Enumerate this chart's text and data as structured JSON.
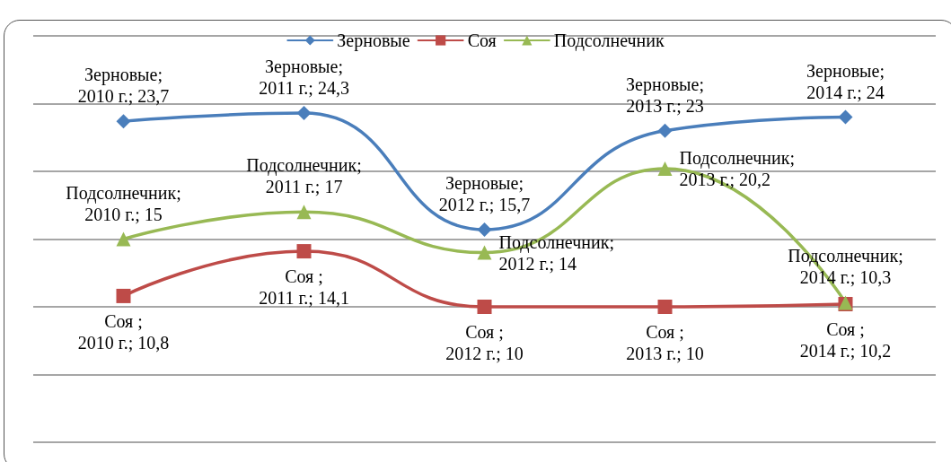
{
  "chart_data": {
    "type": "line",
    "categories": [
      null,
      null,
      null,
      null,
      null
    ],
    "ylim": [
      0,
      30
    ],
    "yticks": [
      {
        "value": 0,
        "label": null
      },
      {
        "value": 5,
        "label": null
      },
      {
        "value": 10,
        "label": null
      },
      {
        "value": 15,
        "label": null
      },
      {
        "value": 20,
        "label": null
      },
      {
        "value": 25,
        "label": null
      },
      {
        "value": 30,
        "label": null
      }
    ],
    "grid": "y",
    "legend": "top",
    "line_style": "solid",
    "series": [
      {
        "name": "Зерновые",
        "color": "#4a7ebb",
        "marker": "diamond",
        "values": [
          23.7,
          24.3,
          15.7,
          23,
          24
        ],
        "value_labels": [
          "Зерновые; 2010 г.; 23,7",
          "Зерновые; 2011 г.; 24,3",
          "Зерновые; 2012 г.; 15,7",
          "Зерновые; 2013 г.; 23",
          "Зерновые; 2014 г.; 24"
        ]
      },
      {
        "name": "Соя",
        "color": "#be4b48",
        "marker": "square",
        "values": [
          10.8,
          14.1,
          10,
          10,
          10.2
        ],
        "value_labels": [
          "Соя ; 2010 г.; 10,8",
          "Соя ; 2011 г.; 14,1",
          "Соя ; 2012 г.; 10",
          "Соя ; 2013 г.; 10",
          "Соя ; 2014 г.; 10,2"
        ]
      },
      {
        "name": "Подсолнечник",
        "color": "#98b954",
        "marker": "triangle",
        "values": [
          15,
          17,
          14,
          20.2,
          10.3
        ],
        "value_labels": [
          "Подсолнечник; 2010 г.; 15",
          "Подсолнечник; 2011 г.; 17",
          "Подсолнечник; 2012 г.; 14",
          "Подсолнечник; 2013 г.; 20,2",
          "Подсолнечник; 2014 г.; 10,3"
        ]
      }
    ]
  }
}
